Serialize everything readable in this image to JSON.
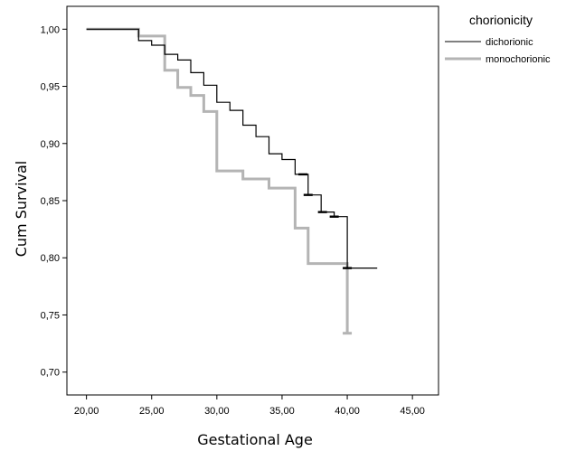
{
  "chart_data": {
    "type": "line",
    "subtype": "kaplan-meier step",
    "xlabel": "Gestational Age",
    "ylabel": "Cum Survival",
    "xlim": [
      18.5,
      47
    ],
    "ylim": [
      0.68,
      1.02
    ],
    "x_ticks": [
      "20,00",
      "25,00",
      "30,00",
      "35,00",
      "40,00",
      "45,00"
    ],
    "x_tick_values": [
      20,
      25,
      30,
      35,
      40,
      45
    ],
    "y_ticks": [
      "0,70",
      "0,75",
      "0,80",
      "0,85",
      "0,90",
      "0,95",
      "1,00"
    ],
    "y_tick_values": [
      0.7,
      0.75,
      0.8,
      0.85,
      0.9,
      0.95,
      1.0
    ],
    "grid": false,
    "legend": {
      "title": "chorionicity",
      "position": "top-right"
    },
    "series": [
      {
        "name": "dichorionic",
        "color": "#000000",
        "points": [
          [
            20,
            1.0
          ],
          [
            24,
            1.0
          ],
          [
            24,
            0.99
          ],
          [
            25,
            0.99
          ],
          [
            25,
            0.986
          ],
          [
            26,
            0.986
          ],
          [
            26,
            0.982
          ],
          [
            26,
            0.978
          ],
          [
            27,
            0.978
          ],
          [
            27,
            0.973
          ],
          [
            28,
            0.973
          ],
          [
            28,
            0.967
          ],
          [
            28,
            0.962
          ],
          [
            29,
            0.962
          ],
          [
            29,
            0.956
          ],
          [
            29,
            0.951
          ],
          [
            30,
            0.951
          ],
          [
            30,
            0.944
          ],
          [
            30,
            0.936
          ],
          [
            31,
            0.936
          ],
          [
            31,
            0.929
          ],
          [
            32,
            0.929
          ],
          [
            32,
            0.922
          ],
          [
            32,
            0.916
          ],
          [
            33,
            0.916
          ],
          [
            33,
            0.906
          ],
          [
            34,
            0.906
          ],
          [
            34,
            0.891
          ],
          [
            35,
            0.891
          ],
          [
            35,
            0.886
          ],
          [
            36,
            0.886
          ],
          [
            36,
            0.873
          ],
          [
            37,
            0.873
          ],
          [
            37,
            0.855
          ],
          [
            38,
            0.855
          ],
          [
            38,
            0.84
          ],
          [
            39,
            0.84
          ],
          [
            39,
            0.836
          ],
          [
            40,
            0.836
          ],
          [
            40,
            0.791
          ],
          [
            42.3,
            0.791
          ]
        ],
        "censored": [
          [
            36.6,
            0.873
          ],
          [
            37,
            0.855
          ],
          [
            38.1,
            0.84
          ],
          [
            39,
            0.836
          ],
          [
            40,
            0.791
          ]
        ]
      },
      {
        "name": "monochorionic",
        "color": "#b4b4b4",
        "points": [
          [
            20,
            1.0
          ],
          [
            24,
            1.0
          ],
          [
            24,
            0.994
          ],
          [
            26,
            0.994
          ],
          [
            26,
            0.964
          ],
          [
            27,
            0.964
          ],
          [
            27,
            0.949
          ],
          [
            28,
            0.949
          ],
          [
            28,
            0.942
          ],
          [
            29,
            0.942
          ],
          [
            29,
            0.928
          ],
          [
            30,
            0.928
          ],
          [
            30,
            0.876
          ],
          [
            32,
            0.876
          ],
          [
            32,
            0.869
          ],
          [
            34,
            0.869
          ],
          [
            34,
            0.861
          ],
          [
            36,
            0.861
          ],
          [
            36,
            0.826
          ],
          [
            37,
            0.826
          ],
          [
            37,
            0.795
          ],
          [
            40,
            0.795
          ],
          [
            40,
            0.734
          ]
        ],
        "censored": [
          [
            40,
            0.734
          ]
        ]
      }
    ]
  }
}
